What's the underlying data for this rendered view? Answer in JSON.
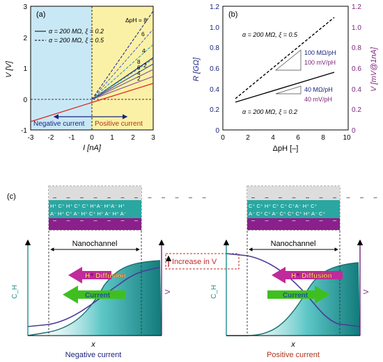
{
  "panel_a": {
    "label": "(a)",
    "xlabel": "I [nA]",
    "ylabel": "V [V]",
    "xticks": [
      "-3",
      "-2",
      "-1",
      "0",
      "1",
      "2",
      "3"
    ],
    "yticks": [
      "-1",
      "0",
      "1",
      "2",
      "3"
    ],
    "legend": [
      {
        "text": "α = 200 MΩ, ξ = 0.2",
        "style": "solid"
      },
      {
        "text": "α = 200 MΩ, ξ = 0.5",
        "style": "dashed"
      }
    ],
    "dph_label": "ΔpH = 8",
    "curve_labels_dashed": [
      "6",
      "4",
      "2"
    ],
    "curve_labels_solid": [
      "8",
      "6",
      "4",
      "2"
    ],
    "negative_label": "Negative current",
    "positive_label": "Positive current"
  },
  "panel_b": {
    "label": "(b)",
    "xlabel": "ΔpH [–]",
    "ylabel_left": "R [GΩ]",
    "ylabel_right": "V [mV@1nA]",
    "xticks": [
      "0",
      "2",
      "4",
      "6",
      "8",
      "10"
    ],
    "yticks_left": [
      "0",
      "0.2",
      "0.4",
      "0.6",
      "0.8",
      "1.0",
      "1.2"
    ],
    "yticks_right": [
      "0",
      "0.2",
      "0.4",
      "0.6",
      "0.8",
      "1.0",
      "1.2"
    ],
    "label_dashed": "α = 200 MΩ, ξ = 0.5",
    "label_solid": "α = 200 MΩ, ξ = 0.2",
    "slope_dashed_r": "100 MΩ/pH",
    "slope_dashed_v": "100 mV/pH",
    "slope_solid_r": "40 MΩ/pH",
    "slope_solid_v": "40 mV/pH"
  },
  "panel_c": {
    "label": "(c)",
    "nanochannel": "Nanochannel",
    "increase": "Increase in V",
    "diffusion": "H⁺ Diffusion",
    "current": "Current",
    "ch_label": "C_H",
    "v_label": "V",
    "x_label": "x",
    "negative_caption": "Negative current",
    "positive_caption": "Positive current",
    "row1_left": "H⁺ C⁺ H⁺ C⁺ C⁺ H⁺A⁻ H⁺A⁻ H⁺",
    "row2_left": "A⁻ H⁺ C⁺ A⁻ H⁺ C⁺ H⁺ A⁻ H⁺ A⁻",
    "row1_right": "C⁺ C⁺ H⁺ C⁺ C⁺ C⁺A⁻ H⁺ C⁺",
    "row2_right": "A⁻ C⁺ C⁺ A⁻ C⁺ C⁺ C⁺ H⁺ A⁻ C⁺"
  },
  "colors": {
    "neg_region": "#c9e8f6",
    "pos_region": "#fbf1a6",
    "navy": "#1a237e",
    "purple": "#7b1f7b",
    "teal": "#1b8f8f",
    "green": "#3fbf1f",
    "magenta": "#c02a9a"
  }
}
